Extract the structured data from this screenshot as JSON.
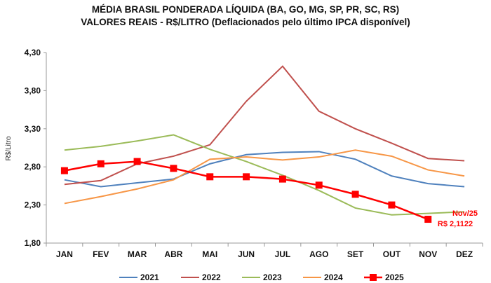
{
  "chart_data": {
    "type": "line",
    "title": "MÉDIA BRASIL PONDERADA LÍQUIDA (BA, GO, MG, SP, PR, SC, RS)",
    "subtitle": "VALORES REAIS - R$/LITRO (Deflacionados  pelo último IPCA disponível)",
    "xlabel": "",
    "ylabel": "R$/Litro",
    "ylim": [
      1.8,
      4.3
    ],
    "yticks": [
      "1,80",
      "2,30",
      "2,80",
      "3,30",
      "3,80",
      "4,30"
    ],
    "categories": [
      "JAN",
      "FEV",
      "MAR",
      "ABR",
      "MAI",
      "JUN",
      "JUL",
      "AGO",
      "SET",
      "OUT",
      "NOV",
      "DEZ"
    ],
    "grid": false,
    "legend": "bottom",
    "series": [
      {
        "name": "2021",
        "color": "#4f81bd",
        "marker": false,
        "values": [
          2.63,
          2.54,
          2.59,
          2.64,
          2.84,
          2.96,
          2.99,
          3.0,
          2.9,
          2.68,
          2.58,
          2.54
        ]
      },
      {
        "name": "2022",
        "color": "#c0504d",
        "marker": false,
        "values": [
          2.57,
          2.62,
          2.84,
          2.94,
          3.09,
          3.66,
          4.12,
          3.53,
          3.3,
          3.11,
          2.91,
          2.88
        ]
      },
      {
        "name": "2023",
        "color": "#9bbb59",
        "marker": false,
        "values": [
          3.02,
          3.07,
          3.14,
          3.22,
          3.03,
          2.87,
          2.69,
          2.49,
          2.26,
          2.17,
          2.19,
          2.21
        ]
      },
      {
        "name": "2024",
        "color": "#f79646",
        "marker": false,
        "values": [
          2.32,
          2.41,
          2.51,
          2.63,
          2.9,
          2.93,
          2.89,
          2.93,
          3.02,
          2.94,
          2.76,
          2.68
        ]
      },
      {
        "name": "2025",
        "color": "#ff0000",
        "marker": true,
        "values": [
          2.75,
          2.84,
          2.87,
          2.78,
          2.67,
          2.67,
          2.64,
          2.56,
          2.44,
          2.3,
          2.1122,
          null
        ]
      }
    ],
    "annotation": {
      "line1": "Nov/25",
      "line2": "R$ 2,1122",
      "color": "#ff0000"
    }
  }
}
